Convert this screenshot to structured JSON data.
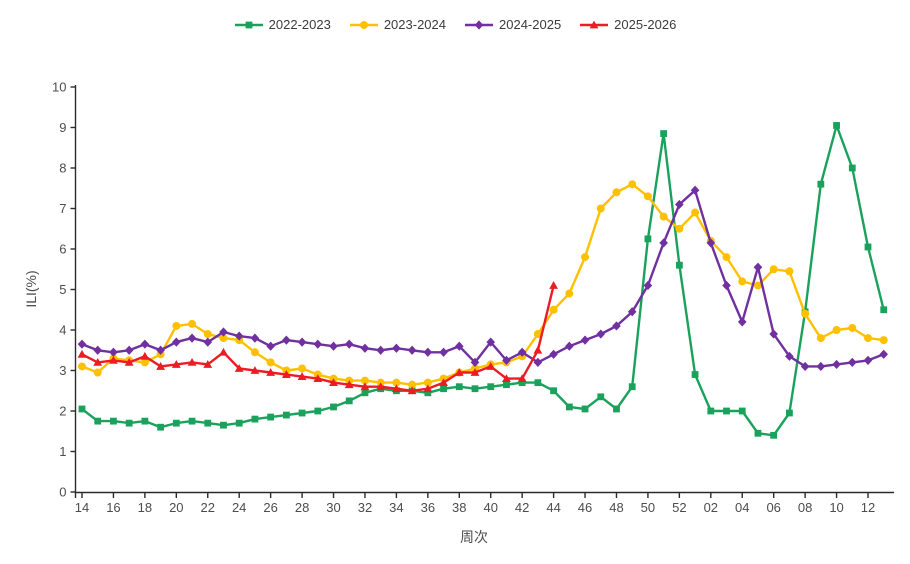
{
  "chart_data": {
    "type": "line",
    "title": "",
    "xlabel": "周次",
    "ylabel": "ILI(%)",
    "ylim": [
      0,
      10
    ],
    "grid": false,
    "legend_position": "top-center",
    "axis_color": "#2b2b2b",
    "tick_label_color": "#4d4d4d",
    "y_ticks": [
      0,
      1,
      2,
      3,
      4,
      5,
      6,
      7,
      8,
      9,
      10
    ],
    "x_tick_labels": [
      "14",
      "16",
      "18",
      "20",
      "22",
      "24",
      "26",
      "28",
      "30",
      "32",
      "34",
      "36",
      "38",
      "40",
      "42",
      "44",
      "46",
      "48",
      "50",
      "52",
      "02",
      "04",
      "06",
      "08",
      "10",
      "12"
    ],
    "weeks": [
      "14",
      "15",
      "16",
      "17",
      "18",
      "19",
      "20",
      "21",
      "22",
      "23",
      "24",
      "25",
      "26",
      "27",
      "28",
      "29",
      "30",
      "31",
      "32",
      "33",
      "34",
      "35",
      "36",
      "37",
      "38",
      "39",
      "40",
      "41",
      "42",
      "43",
      "44",
      "45",
      "46",
      "47",
      "48",
      "49",
      "50",
      "51",
      "52",
      "01",
      "02",
      "03",
      "04",
      "05",
      "06",
      "07",
      "08",
      "09",
      "10",
      "11",
      "12",
      "13"
    ],
    "series": [
      {
        "name": "2022-2023",
        "color": "#1aa25c",
        "marker": "square",
        "values": [
          2.05,
          1.75,
          1.75,
          1.7,
          1.75,
          1.6,
          1.7,
          1.75,
          1.7,
          1.65,
          1.7,
          1.8,
          1.85,
          1.9,
          1.95,
          2.0,
          2.1,
          2.25,
          2.45,
          2.55,
          2.5,
          2.5,
          2.45,
          2.55,
          2.6,
          2.55,
          2.6,
          2.65,
          2.7,
          2.7,
          2.5,
          2.1,
          2.05,
          2.35,
          2.05,
          2.6,
          6.25,
          8.85,
          5.6,
          2.9,
          2.0,
          2.0,
          2.0,
          1.45,
          1.4,
          1.95,
          4.45,
          7.6,
          9.05,
          8.0,
          6.05,
          4.5
        ]
      },
      {
        "name": "2023-2024",
        "color": "#ffc000",
        "marker": "circle",
        "values": [
          3.1,
          2.95,
          3.3,
          3.25,
          3.2,
          3.4,
          4.1,
          4.15,
          3.9,
          3.8,
          3.75,
          3.45,
          3.2,
          3.0,
          3.05,
          2.9,
          2.8,
          2.75,
          2.75,
          2.7,
          2.7,
          2.65,
          2.7,
          2.8,
          2.95,
          3.05,
          3.15,
          3.2,
          3.35,
          3.9,
          4.5,
          4.9,
          5.8,
          7.0,
          7.4,
          7.6,
          7.3,
          6.8,
          6.5,
          6.9,
          6.2,
          5.8,
          5.2,
          5.1,
          5.5,
          5.45,
          4.4,
          3.8,
          4.0,
          4.05,
          3.8,
          3.75
        ]
      },
      {
        "name": "2024-2025",
        "color": "#7030a0",
        "marker": "diamond",
        "values": [
          3.65,
          3.5,
          3.45,
          3.5,
          3.65,
          3.5,
          3.7,
          3.8,
          3.7,
          3.95,
          3.85,
          3.8,
          3.6,
          3.75,
          3.7,
          3.65,
          3.6,
          3.65,
          3.55,
          3.5,
          3.55,
          3.5,
          3.45,
          3.45,
          3.6,
          3.2,
          3.7,
          3.25,
          3.45,
          3.2,
          3.4,
          3.6,
          3.75,
          3.9,
          4.1,
          4.45,
          5.1,
          6.15,
          7.1,
          7.45,
          6.15,
          5.1,
          4.2,
          5.55,
          3.9,
          3.35,
          3.1,
          3.1,
          3.15,
          3.2,
          3.25,
          3.4
        ]
      },
      {
        "name": "2025-2026",
        "color": "#ed1c24",
        "marker": "triangle",
        "values": [
          3.4,
          3.2,
          3.25,
          3.2,
          3.35,
          3.1,
          3.15,
          3.2,
          3.15,
          3.45,
          3.05,
          3.0,
          2.95,
          2.9,
          2.85,
          2.8,
          2.7,
          2.65,
          2.6,
          2.6,
          2.55,
          2.5,
          2.55,
          2.7,
          2.95,
          2.95,
          3.1,
          2.8,
          2.8,
          3.5,
          5.1
        ]
      }
    ]
  }
}
